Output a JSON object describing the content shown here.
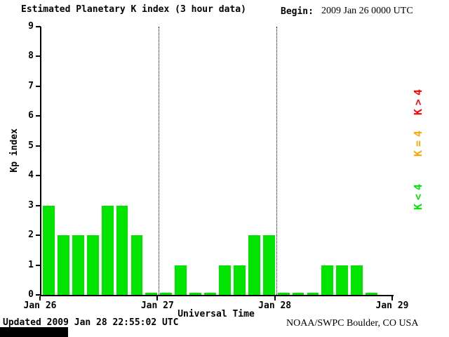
{
  "header": {
    "title": "Estimated Planetary K index (3 hour data)",
    "begin_label": "Begin:",
    "begin_value": "2009 Jan 26 0000 UTC"
  },
  "footer": {
    "updated": "Updated 2009 Jan 28 22:55:02 UTC",
    "source": "NOAA/SWPC Boulder, CO USA"
  },
  "legend": {
    "position": "right",
    "items": [
      {
        "label": "K>4",
        "color": "#ff0000"
      },
      {
        "label": "K=4",
        "color": "#ffa500"
      },
      {
        "label": "K<4",
        "color": "#00e400"
      }
    ]
  },
  "chart_data": {
    "type": "bar",
    "title": "Estimated Planetary K index (3 hour data)",
    "xlabel": "Universal Time",
    "ylabel": "Kp index",
    "ylim": [
      0,
      9
    ],
    "y_ticks": [
      0,
      1,
      2,
      3,
      4,
      5,
      6,
      7,
      8,
      9
    ],
    "x_ticks": [
      "Jan 26",
      "Jan 27",
      "Jan 28",
      "Jan 29"
    ],
    "bars_per_day": 8,
    "grid": "vertical dotted lines at day boundaries",
    "legend_position": "right",
    "color_rule": {
      "kp_lt_4": "#00e400",
      "kp_eq_4": "#ffa500",
      "kp_gt_4": "#ff0000"
    },
    "series": [
      {
        "day": "Jan 26",
        "values": [
          3,
          2,
          2,
          2,
          3,
          3,
          2,
          0
        ]
      },
      {
        "day": "Jan 27",
        "values": [
          0,
          1,
          0,
          0,
          1,
          1,
          2,
          2
        ]
      },
      {
        "day": "Jan 28",
        "values": [
          0,
          0,
          0,
          1,
          1,
          1,
          0
        ]
      }
    ]
  }
}
